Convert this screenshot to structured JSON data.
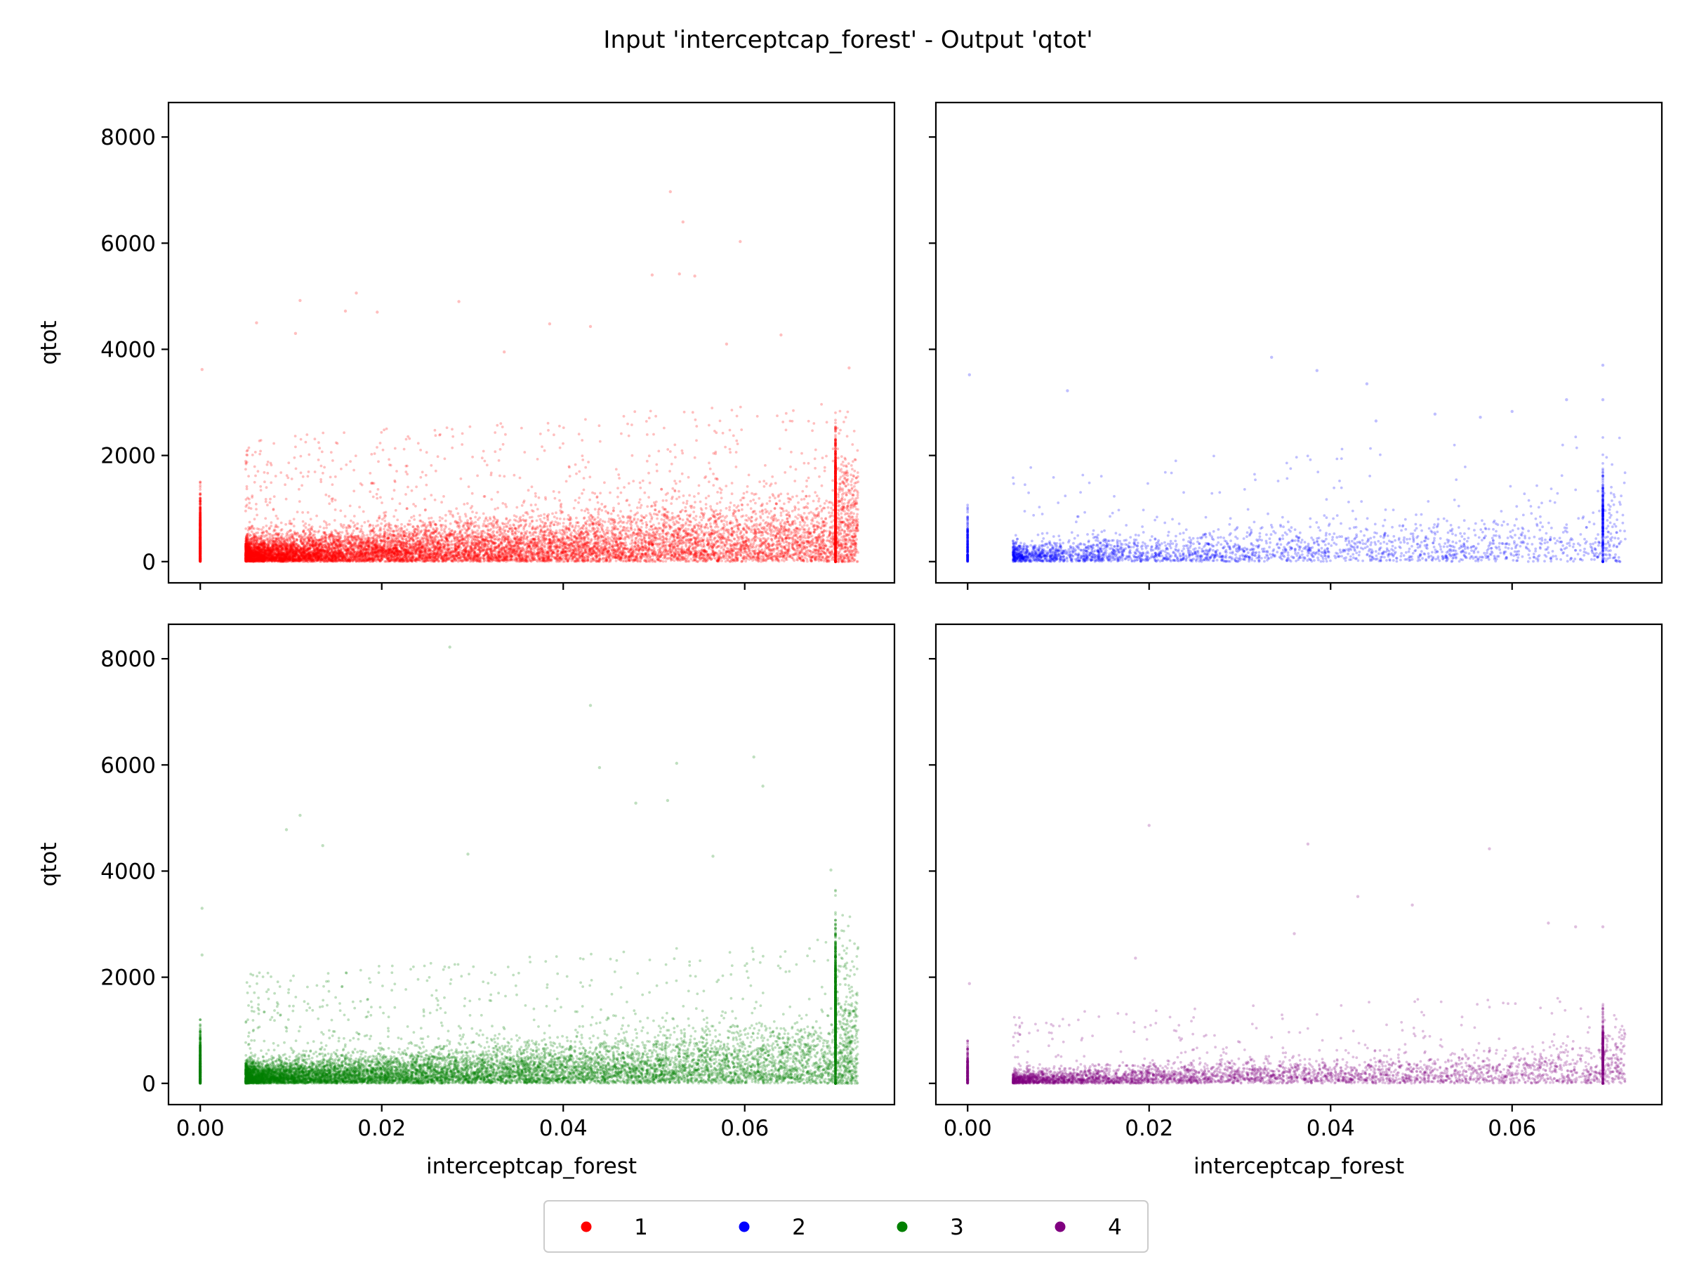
{
  "chart_data": {
    "type": "scatter",
    "title": "Input 'interceptcap_forest' - Output 'qtot'",
    "xlabel": "interceptcap_forest",
    "ylabel": "qtot",
    "xlim": [
      -0.0035,
      0.0765
    ],
    "ylim": [
      -400,
      8650
    ],
    "xticks": [
      0.0,
      0.02,
      0.04,
      0.06
    ],
    "xtick_labels": [
      "0.00",
      "0.02",
      "0.04",
      "0.06"
    ],
    "yticks": [
      0,
      2000,
      4000,
      6000,
      8000
    ],
    "ytick_labels": [
      "0",
      "2000",
      "4000",
      "6000",
      "8000"
    ],
    "grid": false,
    "legend_placement": "bottom-center",
    "point_alpha": 0.25,
    "series": [
      {
        "name": "1",
        "color": "#ff0000",
        "panel": "top-left",
        "points_approx": 14000,
        "x_range": [
          0.0,
          0.0725
        ],
        "typical_y_max": 900,
        "high_at_xmax": 1800,
        "zero_cluster_y_max": 1500,
        "outliers": [
          [
            0.0518,
            6970
          ],
          [
            0.0532,
            6400
          ],
          [
            0.0595,
            6030
          ],
          [
            0.0498,
            5400
          ],
          [
            0.0528,
            5420
          ],
          [
            0.0545,
            5380
          ],
          [
            0.0172,
            5060
          ],
          [
            0.011,
            4920
          ],
          [
            0.0285,
            4900
          ],
          [
            0.016,
            4720
          ],
          [
            0.0195,
            4700
          ],
          [
            0.0385,
            4480
          ],
          [
            0.043,
            4430
          ],
          [
            0.064,
            4270
          ],
          [
            0.0062,
            4500
          ],
          [
            0.0105,
            4300
          ],
          [
            0.058,
            4100
          ],
          [
            0.0715,
            3650
          ],
          [
            0.0002,
            3620
          ],
          [
            0.0335,
            3950
          ]
        ]
      },
      {
        "name": "2",
        "color": "#0000ff",
        "panel": "top-right",
        "points_approx": 3000,
        "x_range": [
          0.0,
          0.072
        ],
        "typical_y_max": 700,
        "high_at_xmax": 1300,
        "zero_cluster_y_max": 1300,
        "outliers": [
          [
            0.0335,
            3850
          ],
          [
            0.07,
            3700
          ],
          [
            0.0385,
            3600
          ],
          [
            0.0002,
            3520
          ],
          [
            0.011,
            3220
          ],
          [
            0.066,
            3050
          ],
          [
            0.07,
            3050
          ],
          [
            0.045,
            2650
          ],
          [
            0.0515,
            2780
          ],
          [
            0.0565,
            2720
          ],
          [
            0.044,
            3350
          ],
          [
            0.06,
            2830
          ]
        ]
      },
      {
        "name": "3",
        "color": "#008000",
        "panel": "bottom-left",
        "points_approx": 12000,
        "x_range": [
          0.0,
          0.0725
        ],
        "typical_y_max": 800,
        "high_at_xmax": 2200,
        "zero_cluster_y_max": 1200,
        "outliers": [
          [
            0.0275,
            8220
          ],
          [
            0.043,
            7120
          ],
          [
            0.061,
            6150
          ],
          [
            0.0525,
            6030
          ],
          [
            0.044,
            5950
          ],
          [
            0.062,
            5600
          ],
          [
            0.048,
            5280
          ],
          [
            0.0515,
            5330
          ],
          [
            0.011,
            5050
          ],
          [
            0.0095,
            4780
          ],
          [
            0.0135,
            4480
          ],
          [
            0.0295,
            4320
          ],
          [
            0.0565,
            4280
          ],
          [
            0.0695,
            4020
          ],
          [
            0.0002,
            3300
          ],
          [
            0.0002,
            2420
          ]
        ]
      },
      {
        "name": "4",
        "color": "#800080",
        "panel": "bottom-right",
        "points_approx": 4500,
        "x_range": [
          0.0,
          0.0725
        ],
        "typical_y_max": 500,
        "high_at_xmax": 1000,
        "zero_cluster_y_max": 800,
        "outliers": [
          [
            0.02,
            4860
          ],
          [
            0.0375,
            4510
          ],
          [
            0.0575,
            4420
          ],
          [
            0.043,
            3520
          ],
          [
            0.049,
            3360
          ],
          [
            0.036,
            2820
          ],
          [
            0.064,
            3020
          ],
          [
            0.067,
            2950
          ],
          [
            0.07,
            2950
          ],
          [
            0.0002,
            1880
          ],
          [
            0.0185,
            2360
          ]
        ]
      }
    ]
  }
}
